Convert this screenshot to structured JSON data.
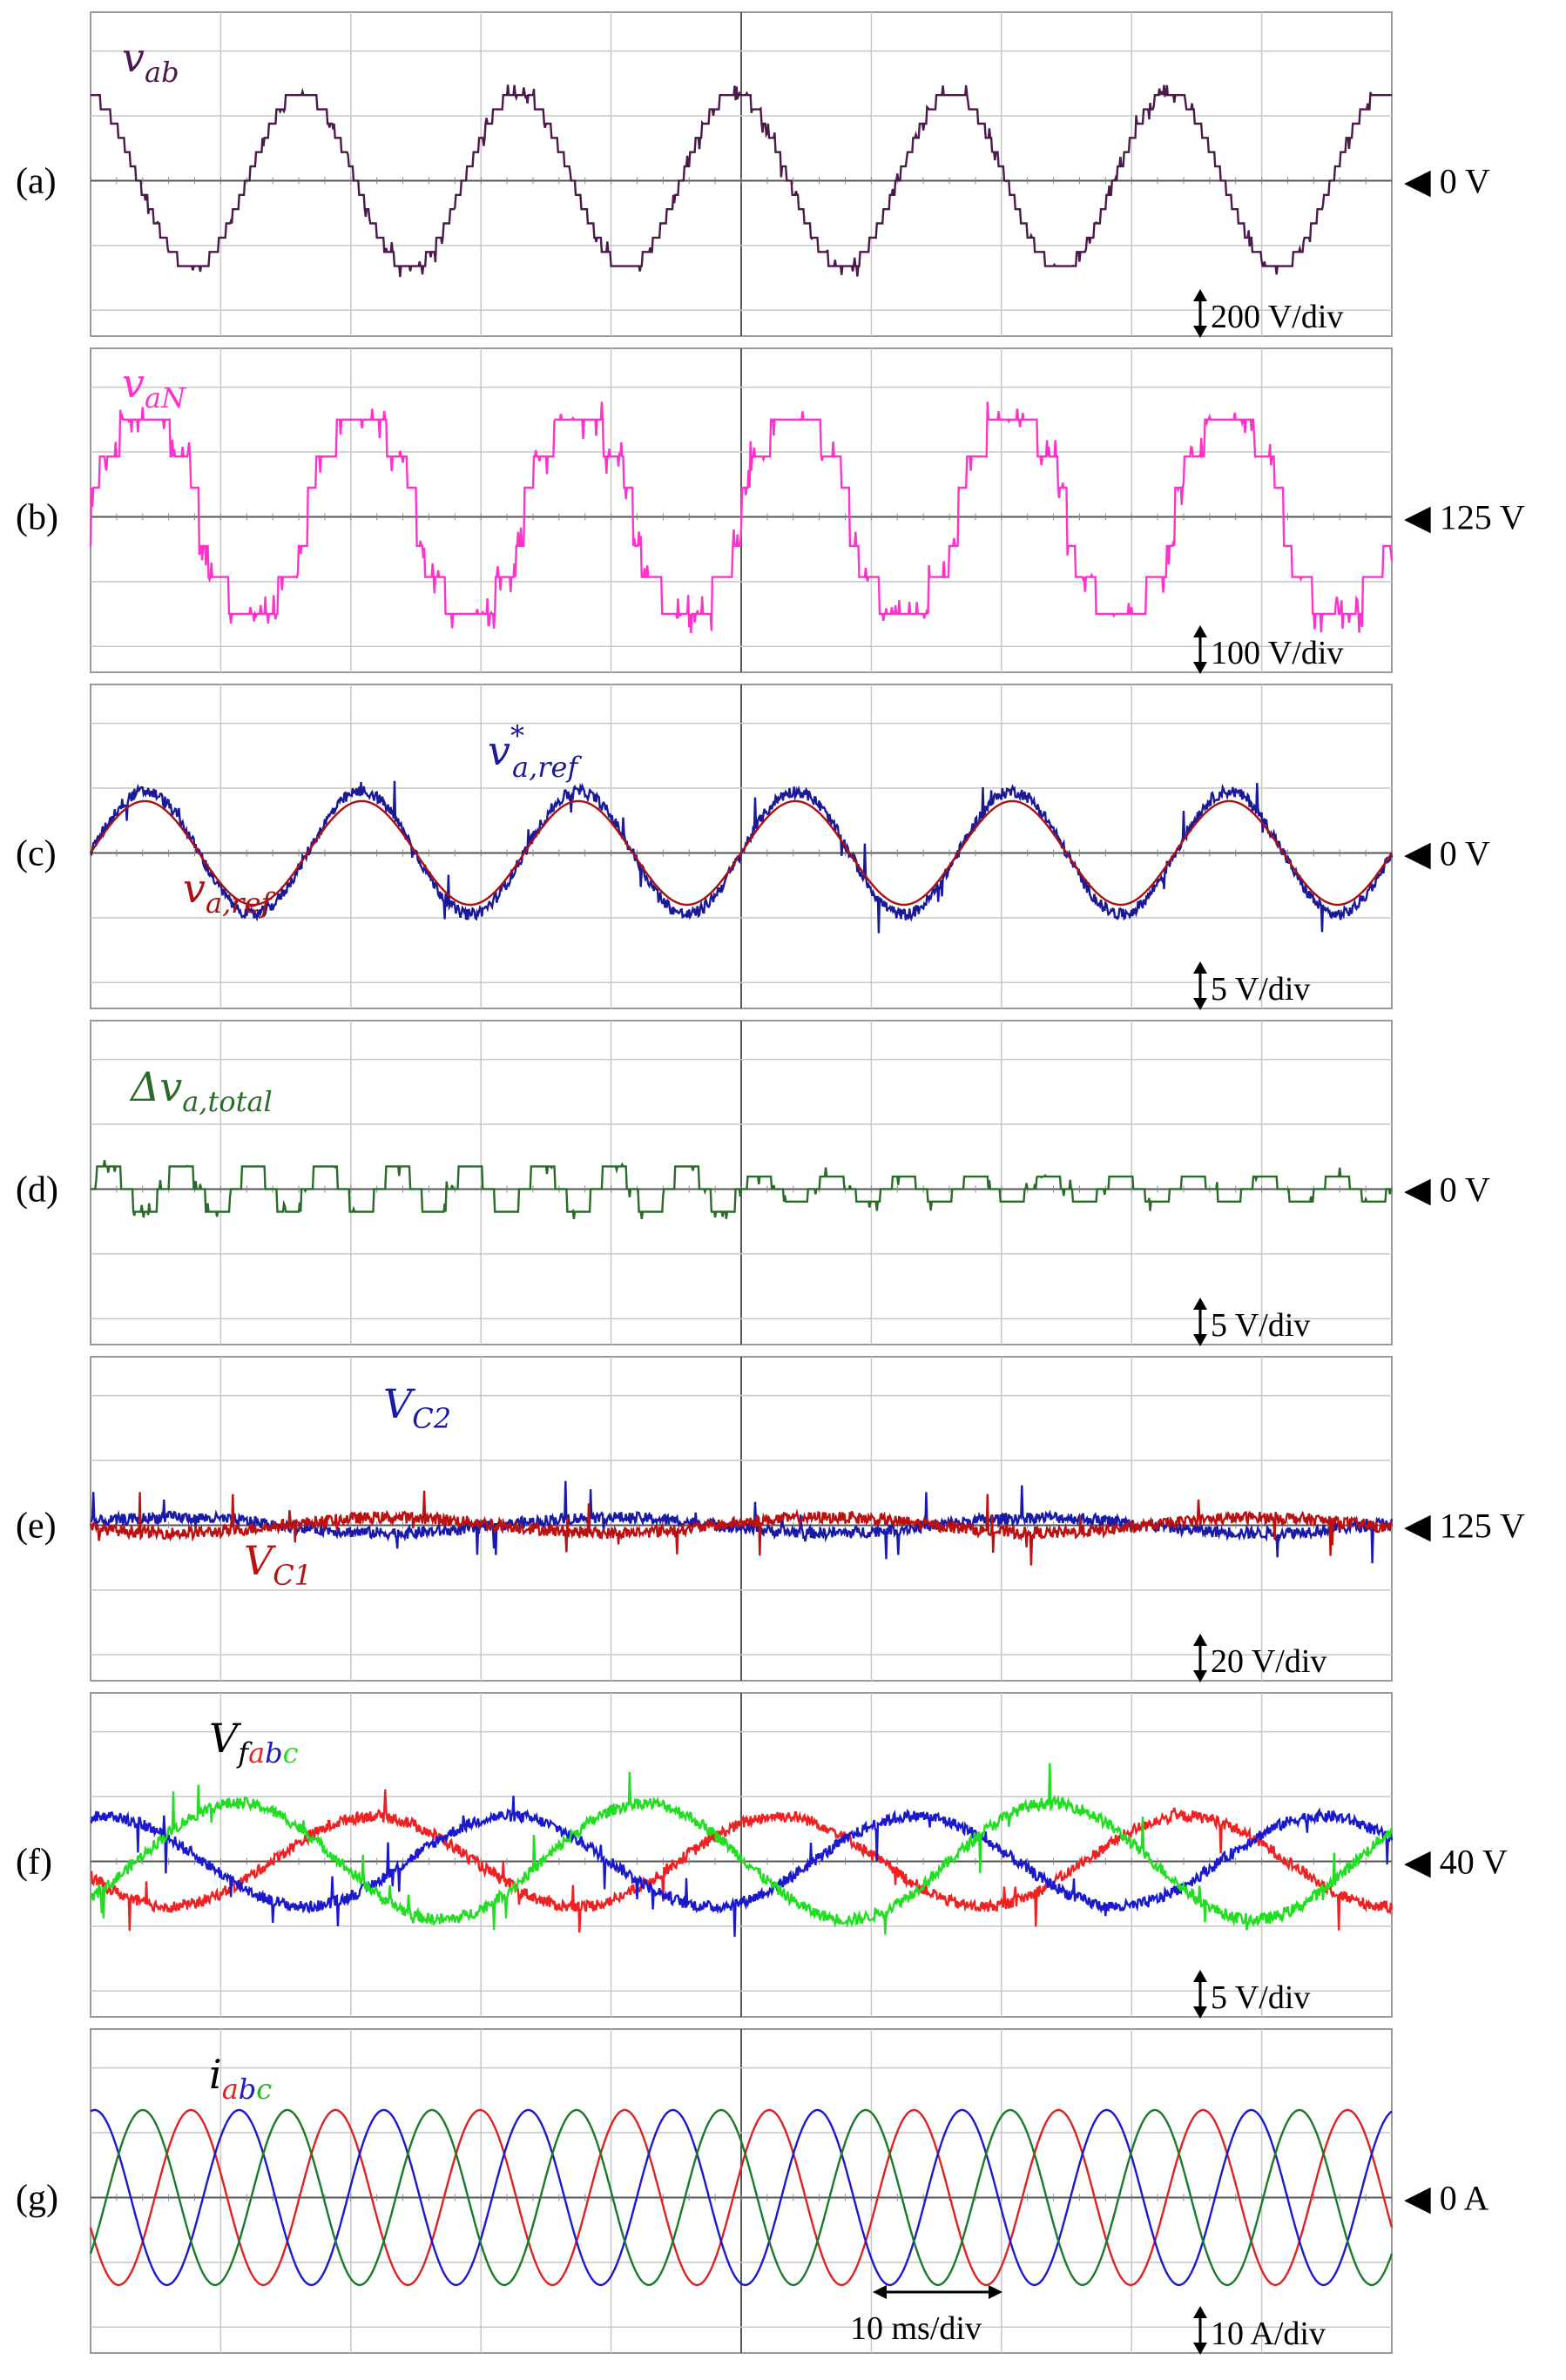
{
  "chart_data": [
    {
      "type": "line",
      "panel_label": "(a)",
      "series": [
        {
          "name": "v_ab",
          "label_main": "v",
          "label_sub": "ab",
          "color": "#4a1a4a",
          "amplitude_div": 1.35,
          "cycles": 6,
          "phase_deg": 100,
          "steps": true
        }
      ],
      "offset_label": "◀ 0 V",
      "scale_label": "200 V/div",
      "ylim": [
        -2.4,
        2.6
      ]
    },
    {
      "type": "line",
      "panel_label": "(b)",
      "series": [
        {
          "name": "v_aN",
          "label_main": "v",
          "label_sub": "aN",
          "color": "#ff33cc",
          "amplitude_div": 1.5,
          "cycles": 6,
          "phase_deg": 0,
          "levels": [
            -1.5,
            -0.9,
            0.9,
            1.5
          ]
        }
      ],
      "offset_label": "◀ 125 V",
      "scale_label": "100 V/div",
      "ylim": [
        -2.4,
        2.6
      ]
    },
    {
      "type": "line",
      "panel_label": "(c)",
      "series": [
        {
          "name": "v*_a,ref",
          "label_main": "v",
          "label_sup": "*",
          "label_sub": "a,ref",
          "color": "#1a1a99",
          "amplitude_div": 0.95,
          "cycles": 6,
          "phase_deg": 0,
          "noisy": true
        },
        {
          "name": "v_a,ref",
          "label_main": "v",
          "label_sub": "a,ref",
          "color": "#aa1111",
          "amplitude_div": 0.8,
          "cycles": 6,
          "phase_deg": 0
        }
      ],
      "offset_label": "◀ 0 V",
      "scale_label": "5 V/div",
      "ylim": [
        -2.4,
        2.6
      ]
    },
    {
      "type": "line",
      "panel_label": "(d)",
      "series": [
        {
          "name": "Δv_a,total",
          "label_main": "Δv",
          "label_sub": "a,total",
          "color": "#2a6b2a",
          "amplitude_div": 0.2,
          "cycles": 18,
          "phase_deg": 0,
          "pulses": true
        }
      ],
      "offset_label": "◀ 0 V",
      "scale_label": "5 V/div",
      "ylim": [
        -2.4,
        2.6
      ]
    },
    {
      "type": "line",
      "panel_label": "(e)",
      "series": [
        {
          "name": "V_C2",
          "label_main": "V",
          "label_sub": "C2",
          "color": "#1a1aaa",
          "amplitude_div": 0.12,
          "cycles": 3,
          "phase_deg": 20,
          "noisy": true
        },
        {
          "name": "V_C1",
          "label_main": "V",
          "label_sub": "C1",
          "color": "#bb1111",
          "amplitude_div": 0.12,
          "cycles": 3,
          "phase_deg": 200,
          "noisy": true
        }
      ],
      "offset_label": "◀ 125 V",
      "scale_label": "20 V/div",
      "ylim": [
        -2.4,
        2.6
      ]
    },
    {
      "type": "line",
      "panel_label": "(f)",
      "series": [
        {
          "name": "V_fa",
          "color": "#ee2222",
          "amplitude_div": 0.7,
          "cycles": 3.2,
          "phase_deg": 200,
          "noisy": true
        },
        {
          "name": "V_fb",
          "color": "#1a1acc",
          "amplitude_div": 0.7,
          "cycles": 3.2,
          "phase_deg": 80,
          "noisy": true
        },
        {
          "name": "V_fc",
          "color": "#22dd22",
          "amplitude_div": 0.9,
          "cycles": 3.2,
          "phase_deg": 320,
          "noisy": true
        }
      ],
      "series_label": {
        "main": "V",
        "sub_prefix": "f",
        "sub_letters": [
          "a",
          "b",
          "c"
        ],
        "sub_colors": [
          "#ee2222",
          "#1a1acc",
          "#22dd22"
        ]
      },
      "offset_label": "◀ 40 V",
      "scale_label": "5 V/div",
      "ylim": [
        -2.4,
        2.6
      ]
    },
    {
      "type": "line",
      "panel_label": "(g)",
      "series": [
        {
          "name": "i_a",
          "color": "#dd2222",
          "amplitude_div": 1.35,
          "cycles": 9,
          "phase_deg": 200
        },
        {
          "name": "i_b",
          "color": "#1a1acc",
          "amplitude_div": 1.35,
          "cycles": 9,
          "phase_deg": 80
        },
        {
          "name": "i_c",
          "color": "#1a7a2a",
          "amplitude_div": 1.35,
          "cycles": 9,
          "phase_deg": 320
        }
      ],
      "series_label": {
        "main": "i",
        "sub_prefix": "",
        "sub_letters": [
          "a",
          "b",
          "c"
        ],
        "sub_colors": [
          "#dd2222",
          "#1a1acc",
          "#22bb22"
        ]
      },
      "offset_label": "◀ 0 A",
      "scale_label": "10 A/div",
      "time_label": "10 ms/div",
      "ylim": [
        -2.4,
        2.6
      ]
    }
  ]
}
